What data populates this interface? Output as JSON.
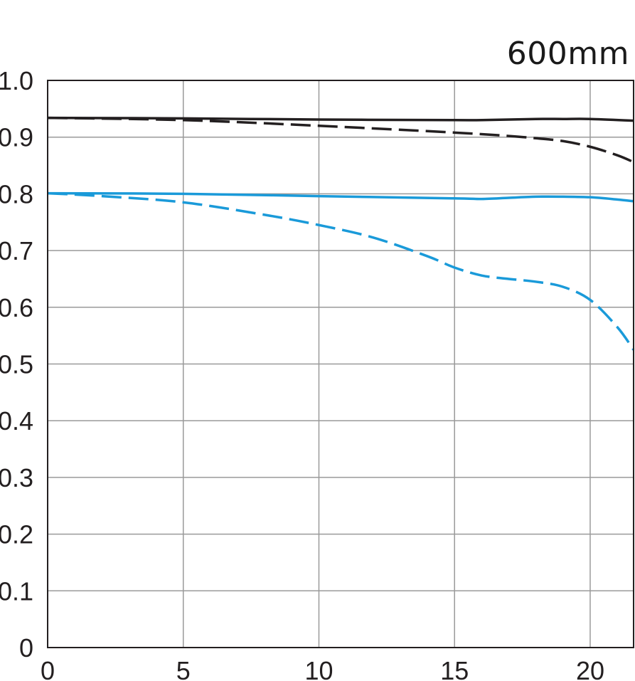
{
  "chart_data": {
    "type": "line",
    "title": "600mm",
    "xlim": [
      0,
      21.6
    ],
    "ylim": [
      0,
      1.0
    ],
    "x_ticks": [
      "0",
      "5",
      "10",
      "15",
      "20"
    ],
    "y_ticks": [
      "0",
      "0.1",
      "0.2",
      "0.3",
      "0.4",
      "0.5",
      "0.6",
      "0.7",
      "0.8",
      "0.9",
      "1.0"
    ],
    "grid": true,
    "legend": "none",
    "series": [
      {
        "color": "#231f20",
        "dash": false,
        "x": [
          0,
          5,
          10,
          15,
          16,
          18,
          19,
          20,
          21.6
        ],
        "y": [
          0.934,
          0.933,
          0.931,
          0.93,
          0.93,
          0.932,
          0.932,
          0.932,
          0.929
        ]
      },
      {
        "color": "#231f20",
        "dash": true,
        "x": [
          0,
          5,
          10,
          15,
          17,
          18,
          19,
          20,
          21,
          21.6
        ],
        "y": [
          0.934,
          0.93,
          0.92,
          0.908,
          0.902,
          0.898,
          0.893,
          0.883,
          0.868,
          0.856
        ]
      },
      {
        "color": "#1a9ad9",
        "dash": false,
        "x": [
          0,
          5,
          10,
          15,
          16,
          17,
          18,
          19,
          20,
          21,
          21.6
        ],
        "y": [
          0.801,
          0.8,
          0.796,
          0.792,
          0.791,
          0.793,
          0.795,
          0.795,
          0.794,
          0.79,
          0.787
        ]
      },
      {
        "color": "#1a9ad9",
        "dash": true,
        "x": [
          0,
          2,
          5,
          8,
          10,
          12,
          14,
          15,
          16,
          17,
          18,
          19,
          20,
          21,
          21.6
        ],
        "y": [
          0.801,
          0.796,
          0.785,
          0.763,
          0.745,
          0.723,
          0.69,
          0.67,
          0.656,
          0.65,
          0.645,
          0.636,
          0.613,
          0.565,
          0.525
        ]
      }
    ]
  }
}
